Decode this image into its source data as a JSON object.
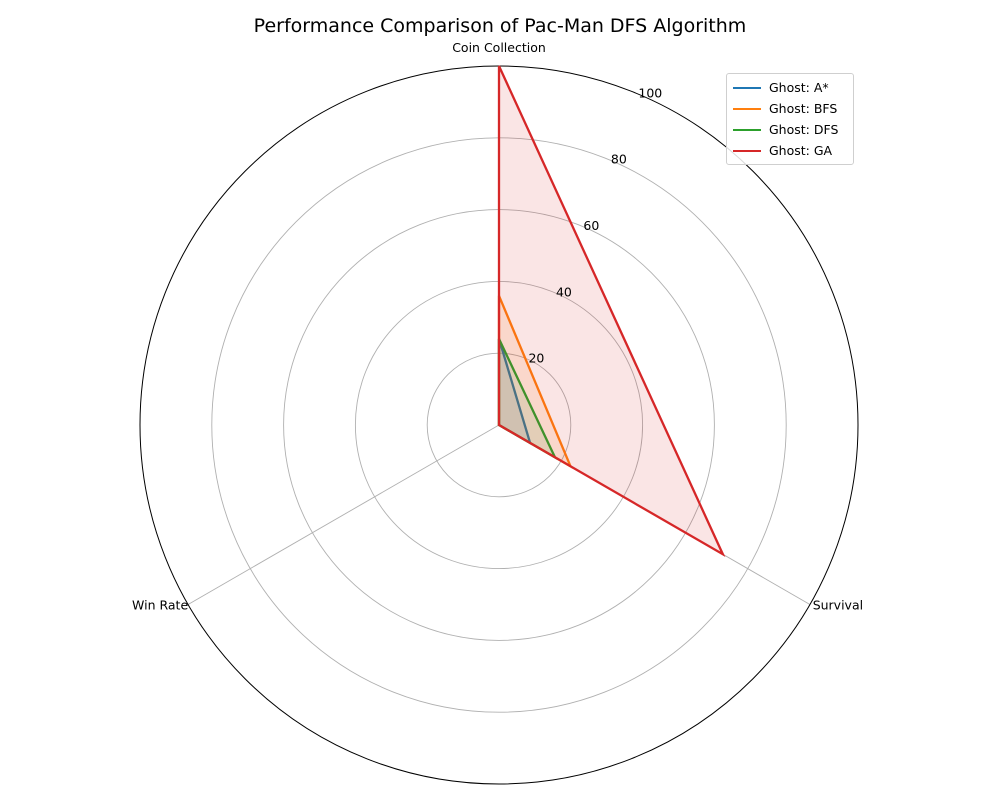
{
  "chart_data": {
    "type": "radar",
    "title": "Performance Comparison of Pac-Man DFS Algorithm",
    "axes": [
      "Coin Collection",
      "Survival",
      "Win Rate"
    ],
    "r_ticks": [
      20,
      40,
      60,
      80,
      100
    ],
    "rlim": [
      0,
      100
    ],
    "grid": true,
    "legend_position": "top-right",
    "series": [
      {
        "name": "Ghost: A*",
        "color": "#1f77b4",
        "values": [
          24,
          10,
          0
        ]
      },
      {
        "name": "Ghost: BFS",
        "color": "#ff7f0e",
        "values": [
          36,
          23,
          0
        ]
      },
      {
        "name": "Ghost: DFS",
        "color": "#2ca02c",
        "values": [
          24,
          18,
          0
        ]
      },
      {
        "name": "Ghost: GA",
        "color": "#d62728",
        "values": [
          100,
          72,
          0
        ]
      }
    ]
  }
}
